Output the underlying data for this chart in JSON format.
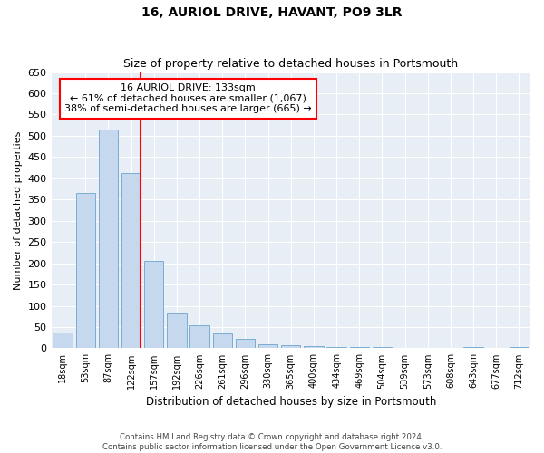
{
  "title": "16, AURIOL DRIVE, HAVANT, PO9 3LR",
  "subtitle": "Size of property relative to detached houses in Portsmouth",
  "xlabel": "Distribution of detached houses by size in Portsmouth",
  "ylabel": "Number of detached properties",
  "bar_color": "#c5d8ed",
  "bar_edge_color": "#7aadd4",
  "background_color": "#e8eef5",
  "categories": [
    "18sqm",
    "53sqm",
    "87sqm",
    "122sqm",
    "157sqm",
    "192sqm",
    "226sqm",
    "261sqm",
    "296sqm",
    "330sqm",
    "365sqm",
    "400sqm",
    "434sqm",
    "469sqm",
    "504sqm",
    "539sqm",
    "573sqm",
    "608sqm",
    "643sqm",
    "677sqm",
    "712sqm"
  ],
  "values": [
    37,
    365,
    515,
    413,
    205,
    83,
    55,
    36,
    22,
    10,
    7,
    5,
    4,
    4,
    4,
    1,
    0,
    0,
    4,
    0,
    4
  ],
  "red_line_index": 3,
  "annotation_title": "16 AURIOL DRIVE: 133sqm",
  "annotation_line1": "← 61% of detached houses are smaller (1,067)",
  "annotation_line2": "38% of semi-detached houses are larger (665) →",
  "ylim": [
    0,
    650
  ],
  "yticks": [
    0,
    50,
    100,
    150,
    200,
    250,
    300,
    350,
    400,
    450,
    500,
    550,
    600,
    650
  ],
  "footnote1": "Contains HM Land Registry data © Crown copyright and database right 2024.",
  "footnote2": "Contains public sector information licensed under the Open Government Licence v3.0."
}
